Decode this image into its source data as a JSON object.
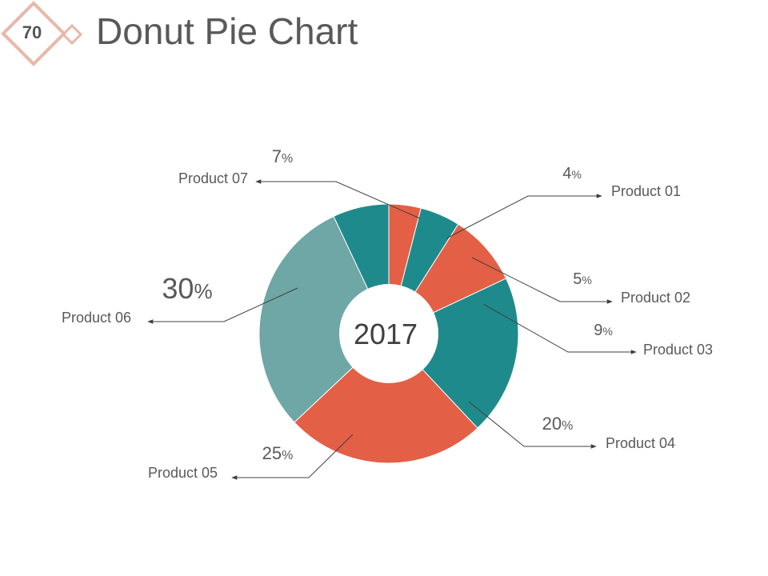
{
  "slide": {
    "page_number": "70",
    "title": "Donut Pie Chart"
  },
  "colors": {
    "teal": "#1f8a8c",
    "coral": "#e35f45",
    "gray_teal": "#6fa6a6",
    "badge": "#e9b7a9",
    "text": "#595959"
  },
  "chart_data": {
    "type": "donut",
    "center_label": "2017",
    "value_unit": "%",
    "slices": [
      {
        "label": "Product 01",
        "value": 4,
        "color": "#e35f45"
      },
      {
        "label": "Product 02",
        "value": 5,
        "color": "#1f8a8c"
      },
      {
        "label": "Product 03",
        "value": 9,
        "color": "#e35f45"
      },
      {
        "label": "Product 04",
        "value": 20,
        "color": "#1f8a8c"
      },
      {
        "label": "Product 05",
        "value": 25,
        "color": "#e35f45"
      },
      {
        "label": "Product 06",
        "value": 30,
        "color": "#6fa6a6"
      },
      {
        "label": "Product 07",
        "value": 7,
        "color": "#1f8a8c"
      }
    ]
  }
}
